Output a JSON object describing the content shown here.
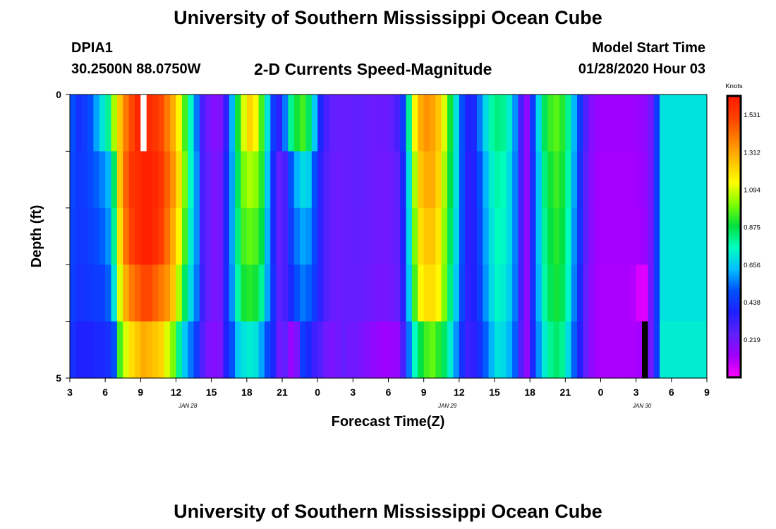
{
  "page": {
    "title_top": "University of Southern Mississippi Ocean Cube",
    "title_bottom": "University of Southern Mississippi Ocean Cube",
    "station_id": "DPIA1",
    "coordinates": "30.2500N 88.0750W",
    "subtitle": "2-D Currents Speed-Magnitude",
    "model_start_label": "Model Start Time",
    "model_start_value": "01/28/2020 Hour 03"
  },
  "colors": {
    "scale": [
      "#ff00ff",
      "#a000ff",
      "#6020ff",
      "#2020ff",
      "#0050ff",
      "#00c0ff",
      "#00ffc0",
      "#00e040",
      "#80ff00",
      "#ffff00",
      "#ffc000",
      "#ff8000",
      "#ff4000",
      "#ff1a00"
    ],
    "missing_top": "#ffffff",
    "missing_bottom": "#000000"
  },
  "chart_data": {
    "type": "heatmap",
    "title": "2-D Currents Speed-Magnitude",
    "xlabel": "Forecast Time(Z)",
    "ylabel": "Depth (ft)",
    "x_hours_range": [
      0,
      54
    ],
    "y_range": [
      0,
      5
    ],
    "y_tick_labels": [
      {
        "value": 0,
        "label": "0"
      },
      {
        "value": 5,
        "label": "5"
      }
    ],
    "y_minor_ticks": [
      1,
      2,
      3,
      4
    ],
    "x_tick_labels": [
      {
        "hour": 0,
        "label": "3"
      },
      {
        "hour": 3,
        "label": "6"
      },
      {
        "hour": 6,
        "label": "9"
      },
      {
        "hour": 9,
        "label": "12"
      },
      {
        "hour": 12,
        "label": "15"
      },
      {
        "hour": 15,
        "label": "18"
      },
      {
        "hour": 18,
        "label": "21"
      },
      {
        "hour": 21,
        "label": "0"
      },
      {
        "hour": 24,
        "label": "3"
      },
      {
        "hour": 27,
        "label": "6"
      },
      {
        "hour": 30,
        "label": "9"
      },
      {
        "hour": 33,
        "label": "12"
      },
      {
        "hour": 36,
        "label": "15"
      },
      {
        "hour": 39,
        "label": "18"
      },
      {
        "hour": 42,
        "label": "21"
      },
      {
        "hour": 45,
        "label": "0"
      },
      {
        "hour": 48,
        "label": "3"
      },
      {
        "hour": 51,
        "label": "6"
      },
      {
        "hour": 54,
        "label": "9"
      }
    ],
    "date_labels": [
      {
        "hour": 10,
        "label": "JAN 28"
      },
      {
        "hour": 32,
        "label": "JAN 29"
      },
      {
        "hour": 48.5,
        "label": "JAN 30"
      }
    ],
    "colorbar": {
      "title": "Knots",
      "min": 0.0,
      "max": 1.64,
      "tick_labels": [
        {
          "value": 1.531,
          "label": "1.531"
        },
        {
          "value": 1.312,
          "label": "1.312"
        },
        {
          "value": 1.094,
          "label": "1.094"
        },
        {
          "value": 0.875,
          "label": "0.875"
        },
        {
          "value": 0.656,
          "label": "0.656"
        },
        {
          "value": 0.438,
          "label": "0.438"
        },
        {
          "value": 0.219,
          "label": "0.219"
        }
      ]
    },
    "layers": 5,
    "time_step_hours": 0.5,
    "columns": [
      {
        "start": 0.0,
        "values": [
          0.5,
          0.48,
          0.47,
          0.46,
          0.42
        ]
      },
      {
        "start": 0.5,
        "values": [
          0.42,
          0.44,
          0.44,
          0.42,
          0.38
        ]
      },
      {
        "start": 1.0,
        "values": [
          0.45,
          0.45,
          0.44,
          0.43,
          0.38
        ]
      },
      {
        "start": 1.5,
        "values": [
          0.5,
          0.48,
          0.46,
          0.44,
          0.38
        ]
      },
      {
        "start": 2.0,
        "values": [
          0.6,
          0.52,
          0.48,
          0.45,
          0.4
        ]
      },
      {
        "start": 2.5,
        "values": [
          0.7,
          0.56,
          0.52,
          0.46,
          0.4
        ]
      },
      {
        "start": 3.0,
        "values": [
          0.8,
          0.62,
          0.58,
          0.52,
          0.42
        ]
      },
      {
        "start": 3.5,
        "values": [
          1.05,
          0.85,
          0.8,
          0.7,
          0.5
        ]
      },
      {
        "start": 4.0,
        "values": [
          1.25,
          1.25,
          1.2,
          1.1,
          0.95
        ]
      },
      {
        "start": 4.5,
        "values": [
          1.4,
          1.45,
          1.42,
          1.3,
          1.1
        ]
      },
      {
        "start": 5.0,
        "values": [
          1.5,
          1.55,
          1.52,
          1.4,
          1.2
        ]
      },
      {
        "start": 5.5,
        "values": [
          1.6,
          1.58,
          1.58,
          1.45,
          1.25
        ]
      },
      {
        "start": 6.0,
        "values": [
          null,
          1.62,
          1.62,
          1.5,
          1.3
        ]
      },
      {
        "start": 6.5,
        "values": [
          1.58,
          1.62,
          1.62,
          1.5,
          1.28
        ]
      },
      {
        "start": 7.0,
        "values": [
          1.55,
          1.6,
          1.58,
          1.45,
          1.25
        ]
      },
      {
        "start": 7.5,
        "values": [
          1.5,
          1.55,
          1.52,
          1.4,
          1.22
        ]
      },
      {
        "start": 8.0,
        "values": [
          1.4,
          1.45,
          1.42,
          1.35,
          1.1
        ]
      },
      {
        "start": 8.5,
        "values": [
          1.3,
          1.35,
          1.3,
          1.25,
          1.0
        ]
      },
      {
        "start": 9.0,
        "values": [
          1.15,
          1.2,
          1.15,
          1.05,
          0.8
        ]
      },
      {
        "start": 9.5,
        "values": [
          0.95,
          1.0,
          0.95,
          0.85,
          0.65
        ]
      },
      {
        "start": 10.0,
        "values": [
          0.75,
          0.75,
          0.72,
          0.68,
          0.55
        ]
      },
      {
        "start": 10.5,
        "values": [
          0.55,
          0.58,
          0.58,
          0.55,
          0.45
        ]
      },
      {
        "start": 11.0,
        "values": [
          0.3,
          0.3,
          0.3,
          0.32,
          0.28
        ]
      },
      {
        "start": 11.5,
        "values": [
          0.22,
          0.25,
          0.25,
          0.24,
          0.2
        ]
      },
      {
        "start": 12.0,
        "values": [
          0.18,
          0.2,
          0.2,
          0.2,
          0.18
        ]
      },
      {
        "start": 12.5,
        "values": [
          0.2,
          0.22,
          0.22,
          0.22,
          0.2
        ]
      },
      {
        "start": 13.0,
        "values": [
          0.35,
          0.4,
          0.4,
          0.4,
          0.38
        ]
      },
      {
        "start": 13.5,
        "values": [
          0.62,
          0.6,
          0.6,
          0.58,
          0.5
        ]
      },
      {
        "start": 14.0,
        "values": [
          0.9,
          0.85,
          0.82,
          0.78,
          0.65
        ]
      },
      {
        "start": 14.5,
        "values": [
          1.1,
          1.0,
          0.95,
          0.9,
          0.7
        ]
      },
      {
        "start": 15.0,
        "values": [
          1.22,
          1.05,
          0.98,
          0.92,
          0.72
        ]
      },
      {
        "start": 15.5,
        "values": [
          1.15,
          1.02,
          0.96,
          0.9,
          0.7
        ]
      },
      {
        "start": 16.0,
        "values": [
          0.95,
          0.92,
          0.88,
          0.8,
          0.6
        ]
      },
      {
        "start": 16.5,
        "values": [
          0.7,
          0.65,
          0.62,
          0.6,
          0.48
        ]
      },
      {
        "start": 17.0,
        "values": [
          0.45,
          0.4,
          0.4,
          0.42,
          0.4
        ]
      },
      {
        "start": 17.5,
        "values": [
          0.35,
          0.25,
          0.25,
          0.26,
          0.22
        ]
      },
      {
        "start": 18.0,
        "values": [
          0.55,
          0.3,
          0.3,
          0.3,
          0.25
        ]
      },
      {
        "start": 18.5,
        "values": [
          0.8,
          0.5,
          0.45,
          0.4,
          0.14
        ]
      },
      {
        "start": 19.0,
        "values": [
          0.9,
          0.62,
          0.55,
          0.5,
          0.2
        ]
      },
      {
        "start": 19.5,
        "values": [
          0.95,
          0.68,
          0.6,
          0.55,
          0.45
        ]
      },
      {
        "start": 20.0,
        "values": [
          0.85,
          0.66,
          0.58,
          0.52,
          0.4
        ]
      },
      {
        "start": 20.5,
        "values": [
          0.65,
          0.5,
          0.48,
          0.45,
          0.32
        ]
      },
      {
        "start": 21.0,
        "values": [
          0.4,
          0.35,
          0.35,
          0.35,
          0.28
        ]
      },
      {
        "start": 21.5,
        "values": [
          0.3,
          0.28,
          0.28,
          0.28,
          0.22
        ]
      },
      {
        "start": 22.0,
        "values": [
          0.25,
          0.24,
          0.24,
          0.24,
          0.2
        ]
      },
      {
        "start": 22.5,
        "values": [
          0.24,
          0.23,
          0.23,
          0.23,
          0.22
        ]
      },
      {
        "start": 23.0,
        "values": [
          0.24,
          0.24,
          0.24,
          0.24,
          0.24
        ]
      },
      {
        "start": 23.5,
        "values": [
          0.24,
          0.24,
          0.24,
          0.24,
          0.22
        ]
      },
      {
        "start": 24.0,
        "values": [
          0.25,
          0.25,
          0.25,
          0.24,
          0.22
        ]
      },
      {
        "start": 24.5,
        "values": [
          0.25,
          0.25,
          0.24,
          0.24,
          0.2
        ]
      },
      {
        "start": 25.0,
        "values": [
          0.24,
          0.24,
          0.24,
          0.23,
          0.18
        ]
      },
      {
        "start": 25.5,
        "values": [
          0.23,
          0.23,
          0.23,
          0.22,
          0.16
        ]
      },
      {
        "start": 26.0,
        "values": [
          0.23,
          0.22,
          0.22,
          0.21,
          0.14
        ]
      },
      {
        "start": 26.5,
        "values": [
          0.23,
          0.22,
          0.22,
          0.21,
          0.13
        ]
      },
      {
        "start": 27.0,
        "values": [
          0.25,
          0.23,
          0.23,
          0.22,
          0.14
        ]
      },
      {
        "start": 27.5,
        "values": [
          0.3,
          0.26,
          0.25,
          0.24,
          0.15
        ]
      },
      {
        "start": 28.0,
        "values": [
          0.45,
          0.4,
          0.38,
          0.36,
          0.3
        ]
      },
      {
        "start": 28.5,
        "values": [
          0.8,
          0.7,
          0.68,
          0.65,
          0.55
        ]
      },
      {
        "start": 29.0,
        "values": [
          1.15,
          1.05,
          1.0,
          0.95,
          0.75
        ]
      },
      {
        "start": 29.5,
        "values": [
          1.3,
          1.25,
          1.2,
          1.15,
          0.88
        ]
      },
      {
        "start": 30.0,
        "values": [
          1.35,
          1.3,
          1.25,
          1.2,
          0.95
        ]
      },
      {
        "start": 30.5,
        "values": [
          1.32,
          1.3,
          1.25,
          1.2,
          0.98
        ]
      },
      {
        "start": 31.0,
        "values": [
          1.25,
          1.22,
          1.18,
          1.15,
          0.92
        ]
      },
      {
        "start": 31.5,
        "values": [
          1.1,
          1.05,
          1.02,
          1.0,
          0.85
        ]
      },
      {
        "start": 32.0,
        "values": [
          0.9,
          0.88,
          0.85,
          0.82,
          0.72
        ]
      },
      {
        "start": 32.5,
        "values": [
          0.7,
          0.7,
          0.68,
          0.65,
          0.58
        ]
      },
      {
        "start": 33.0,
        "values": [
          0.5,
          0.5,
          0.5,
          0.48,
          0.42
        ]
      },
      {
        "start": 33.5,
        "values": [
          0.38,
          0.36,
          0.36,
          0.35,
          0.32
        ]
      },
      {
        "start": 34.0,
        "values": [
          0.4,
          0.38,
          0.38,
          0.38,
          0.35
        ]
      },
      {
        "start": 34.5,
        "values": [
          0.55,
          0.5,
          0.48,
          0.46,
          0.42
        ]
      },
      {
        "start": 35.0,
        "values": [
          0.68,
          0.62,
          0.6,
          0.58,
          0.52
        ]
      },
      {
        "start": 35.5,
        "values": [
          0.78,
          0.72,
          0.7,
          0.68,
          0.62
        ]
      },
      {
        "start": 36.0,
        "values": [
          0.82,
          0.78,
          0.76,
          0.74,
          0.7
        ]
      },
      {
        "start": 36.5,
        "values": [
          0.8,
          0.76,
          0.74,
          0.72,
          0.68
        ]
      },
      {
        "start": 37.0,
        "values": [
          0.72,
          0.68,
          0.68,
          0.66,
          0.62
        ]
      },
      {
        "start": 37.5,
        "values": [
          0.58,
          0.56,
          0.56,
          0.55,
          0.52
        ]
      },
      {
        "start": 38.0,
        "values": [
          0.3,
          0.3,
          0.3,
          0.3,
          0.28
        ]
      },
      {
        "start": 38.5,
        "values": [
          0.16,
          0.16,
          0.16,
          0.16,
          0.16
        ]
      },
      {
        "start": 39.0,
        "values": [
          0.45,
          0.42,
          0.42,
          0.42,
          0.4
        ]
      },
      {
        "start": 39.5,
        "values": [
          0.68,
          0.64,
          0.64,
          0.62,
          0.58
        ]
      },
      {
        "start": 40.0,
        "values": [
          0.86,
          0.82,
          0.8,
          0.78,
          0.72
        ]
      },
      {
        "start": 40.5,
        "values": [
          0.94,
          0.9,
          0.88,
          0.86,
          0.8
        ]
      },
      {
        "start": 41.0,
        "values": [
          0.97,
          0.94,
          0.92,
          0.9,
          0.84
        ]
      },
      {
        "start": 41.5,
        "values": [
          0.92,
          0.9,
          0.88,
          0.86,
          0.8
        ]
      },
      {
        "start": 42.0,
        "values": [
          0.8,
          0.78,
          0.76,
          0.74,
          0.68
        ]
      },
      {
        "start": 42.5,
        "values": [
          0.62,
          0.6,
          0.58,
          0.56,
          0.52
        ]
      },
      {
        "start": 43.0,
        "values": [
          0.45,
          0.42,
          0.42,
          0.4,
          0.38
        ]
      },
      {
        "start": 43.5,
        "values": [
          0.28,
          0.26,
          0.26,
          0.25,
          0.24
        ]
      },
      {
        "start": 44.0,
        "values": [
          0.18,
          0.17,
          0.17,
          0.16,
          0.16
        ]
      },
      {
        "start": 44.5,
        "values": [
          0.14,
          0.13,
          0.13,
          0.12,
          0.12
        ]
      },
      {
        "start": 45.0,
        "values": [
          0.13,
          0.12,
          0.12,
          0.11,
          0.11
        ]
      },
      {
        "start": 45.5,
        "values": [
          0.13,
          0.12,
          0.12,
          0.11,
          0.11
        ]
      },
      {
        "start": 46.0,
        "values": [
          0.13,
          0.12,
          0.12,
          0.11,
          0.11
        ]
      },
      {
        "start": 46.5,
        "values": [
          0.13,
          0.12,
          0.12,
          0.11,
          0.11
        ]
      },
      {
        "start": 47.0,
        "values": [
          0.13,
          0.12,
          0.12,
          0.11,
          0.11
        ]
      },
      {
        "start": 47.5,
        "values": [
          0.13,
          0.12,
          0.12,
          0.1,
          0.11
        ]
      },
      {
        "start": 48.0,
        "values": [
          0.14,
          0.13,
          0.12,
          0.05,
          0.12
        ]
      },
      {
        "start": 48.5,
        "values": [
          0.16,
          0.15,
          0.14,
          0.04,
          null
        ]
      },
      {
        "start": 49.0,
        "values": [
          0.22,
          0.22,
          0.22,
          0.22,
          0.22
        ]
      },
      {
        "start": 49.5,
        "values": [
          0.45,
          0.45,
          0.45,
          0.45,
          0.45
        ]
      },
      {
        "start": 50.0,
        "values": [
          0.7,
          0.7,
          0.7,
          0.7,
          0.72
        ]
      }
    ]
  }
}
